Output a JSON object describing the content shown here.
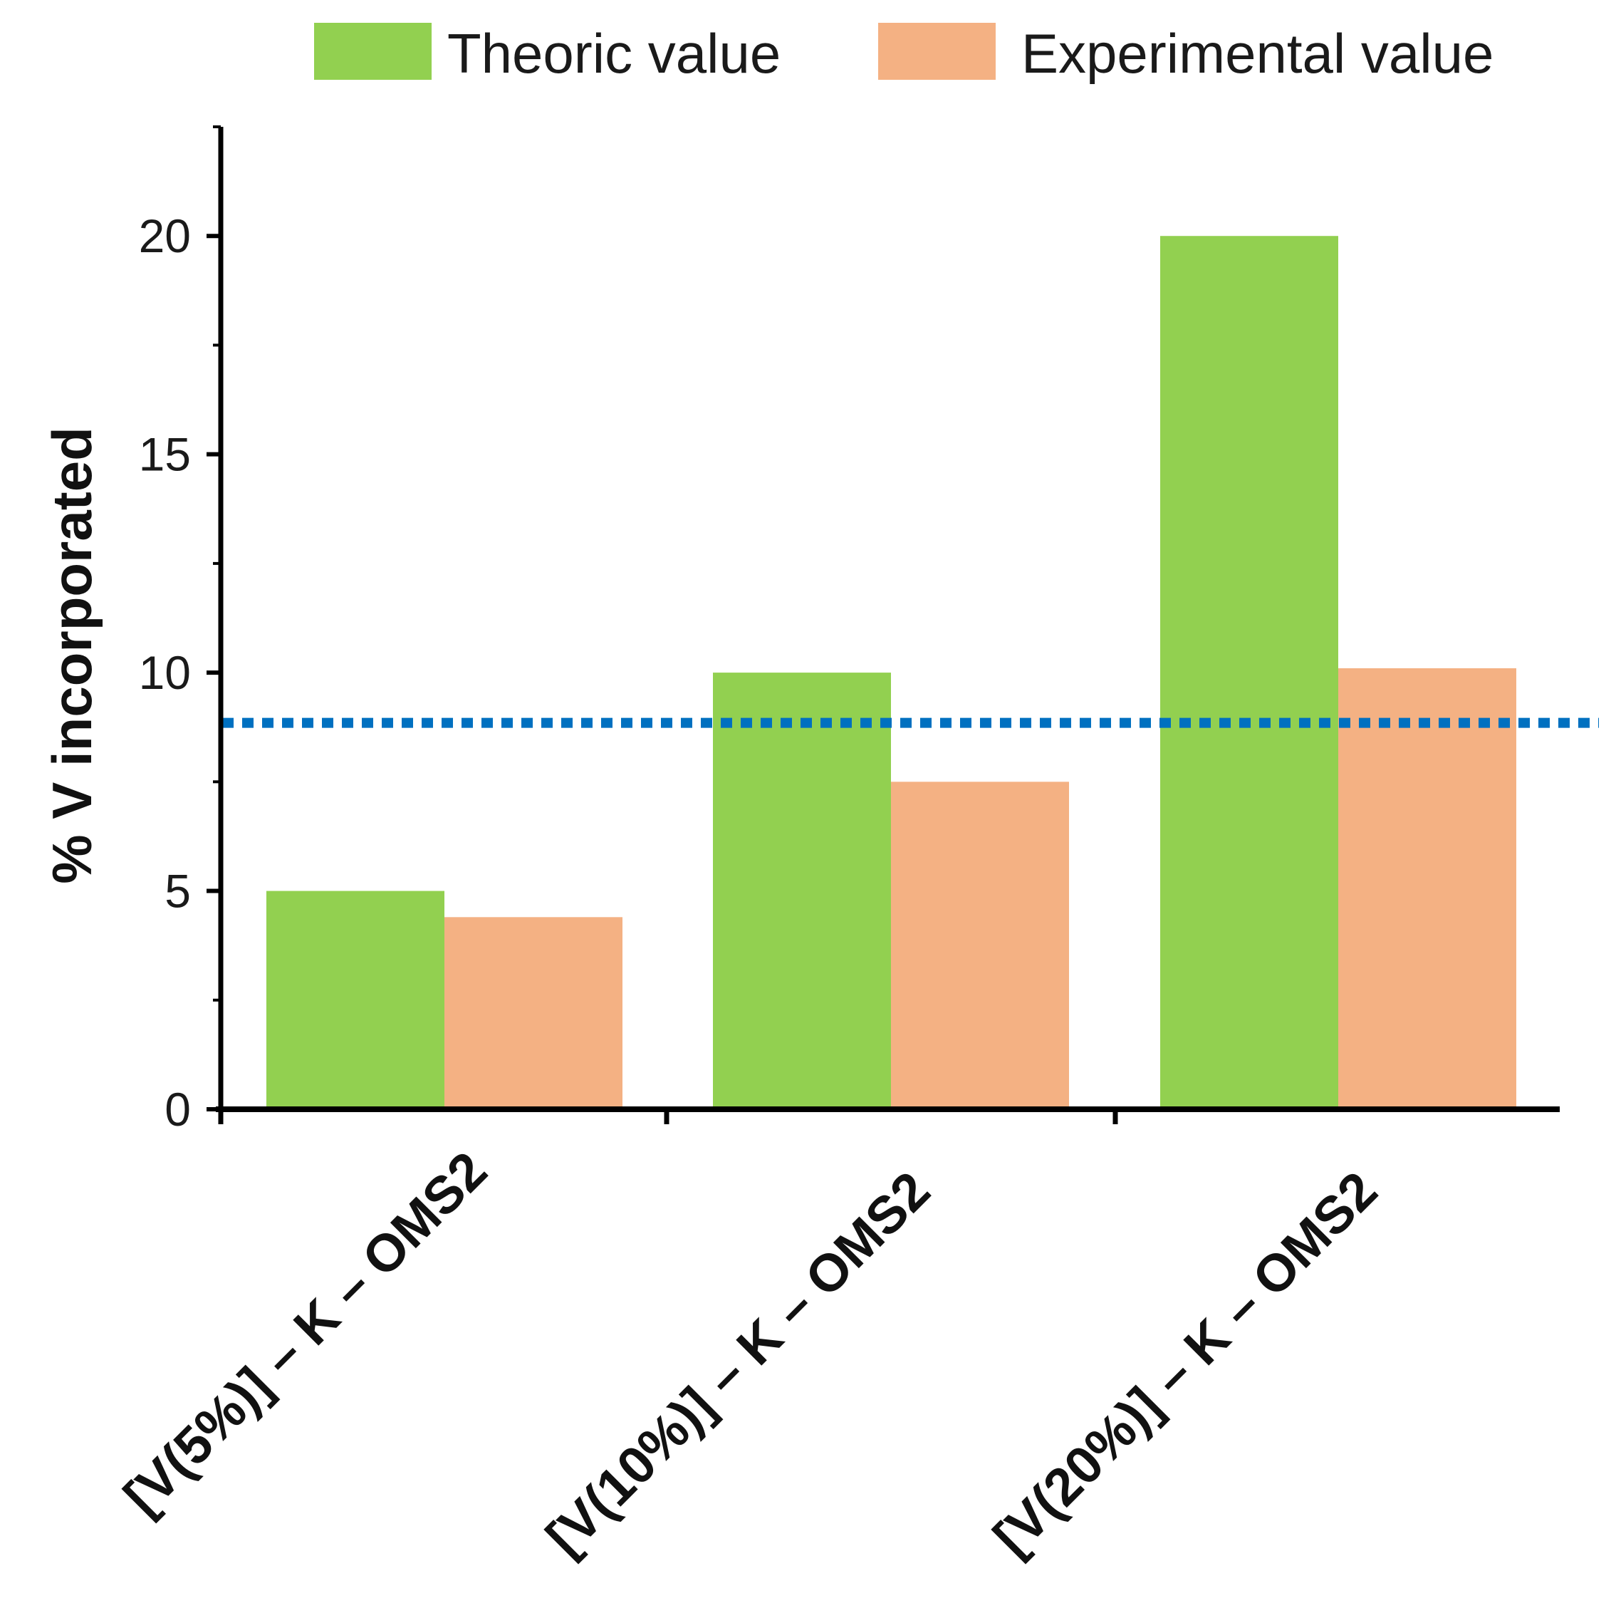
{
  "chart_data": {
    "type": "bar",
    "title": "",
    "xlabel": "",
    "ylabel": "% V incorporated",
    "ylim": [
      0,
      22.5
    ],
    "yticks": [
      0,
      5,
      10,
      15,
      20
    ],
    "ytick_labels": [
      "0",
      "5",
      "10",
      "15",
      "20"
    ],
    "categories": [
      "[V(5%)] – K – OMS2",
      "[V(10%)] – K – OMS2",
      "[V(20%)] – K – OMS2"
    ],
    "series": [
      {
        "name": "Theoric value",
        "color": "#92d050",
        "values": [
          5,
          10,
          20
        ]
      },
      {
        "name": "Experimental value",
        "color": "#f4b183",
        "values": [
          4.4,
          7.5,
          10.1
        ]
      }
    ],
    "reference_line": {
      "value": 8.85,
      "color": "#0070c0",
      "style": "dotted"
    },
    "legend_position": "top",
    "grid": false
  }
}
